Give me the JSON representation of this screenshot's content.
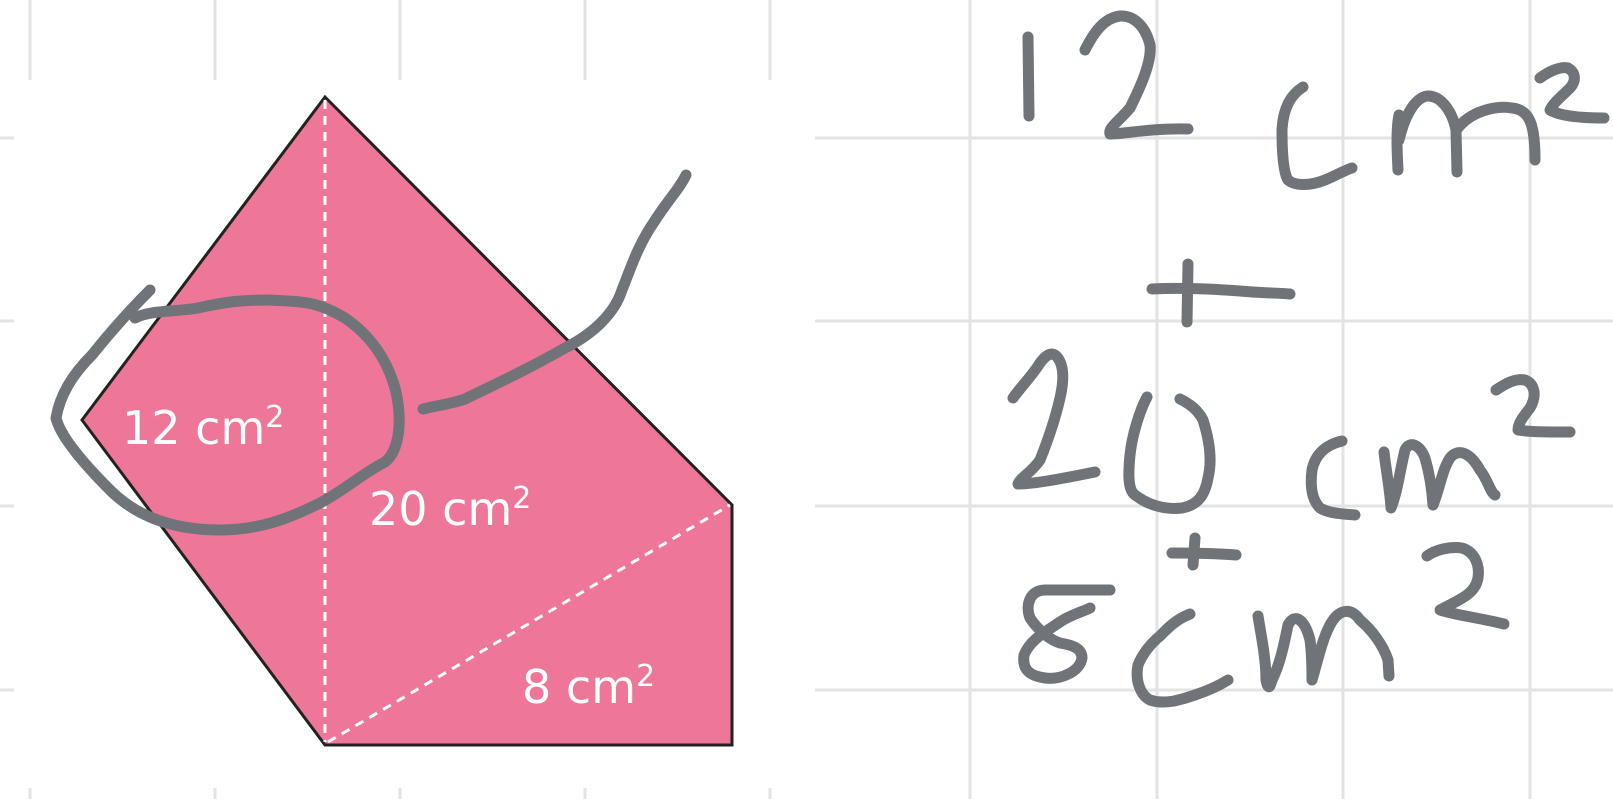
{
  "figure": {
    "fill_color": "#ee7799",
    "outline_color": "#222222",
    "dash_color": "#ffffff",
    "regions": [
      {
        "name": "left-triangle",
        "value": "12",
        "unit": "cm",
        "exponent": "2"
      },
      {
        "name": "middle-triangle",
        "value": "20",
        "unit": "cm",
        "exponent": "2"
      },
      {
        "name": "bottom-right-triangle",
        "value": "8",
        "unit": "cm",
        "exponent": "2"
      }
    ]
  },
  "handwriting": {
    "ink_color": "#707377",
    "text": "12 cm² + 20 cm² + 8 cm²"
  }
}
